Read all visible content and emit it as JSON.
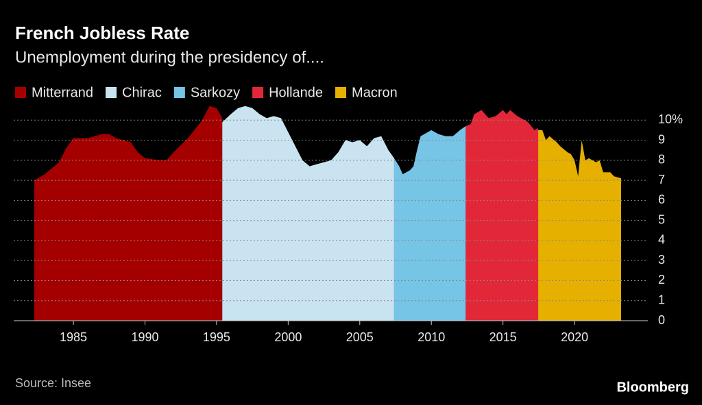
{
  "chart_data": {
    "type": "area",
    "title": "French Jobless Rate",
    "subtitle": "Unemployment during the presidency of....",
    "source": "Source: Insee",
    "brand": "Bloomberg",
    "xlim": [
      1981.8,
      2024.4
    ],
    "xticks": [
      1985,
      1990,
      1995,
      2000,
      2005,
      2010,
      2015,
      2020
    ],
    "ylim": [
      0,
      11
    ],
    "yticks": [
      0,
      1,
      2,
      3,
      4,
      5,
      6,
      7,
      8,
      9,
      {
        "value": 10,
        "label": "10%"
      }
    ],
    "grid": true,
    "series": [
      {
        "name": "Mitterrand",
        "color": "#a50000",
        "x": [
          1982.27,
          1983,
          1984,
          1984.5,
          1985,
          1986,
          1987,
          1987.5,
          1988,
          1989,
          1989.5,
          1990,
          1991,
          1991.5,
          1992,
          1993,
          1994,
          1994.5,
          1995,
          1995.4
        ],
        "values": [
          7.0,
          7.3,
          7.9,
          8.6,
          9.1,
          9.1,
          9.3,
          9.3,
          9.1,
          8.9,
          8.4,
          8.1,
          8.0,
          8.0,
          8.4,
          9.1,
          10.0,
          10.7,
          10.6,
          10.1
        ]
      },
      {
        "name": "Chirac",
        "color": "#c9e4f0",
        "x": [
          1995.4,
          1996,
          1996.5,
          1997,
          1997.5,
          1998,
          1998.5,
          1999,
          1999.5,
          2000,
          2000.5,
          2001,
          2001.5,
          2002,
          2002.5,
          2003,
          2003.5,
          2004,
          2004.5,
          2005,
          2005.5,
          2006,
          2006.5,
          2007,
          2007.4
        ],
        "values": [
          9.9,
          10.3,
          10.6,
          10.7,
          10.6,
          10.3,
          10.1,
          10.2,
          10.1,
          9.4,
          8.7,
          8.0,
          7.7,
          7.8,
          7.9,
          8.0,
          8.4,
          9.0,
          8.9,
          9.0,
          8.7,
          9.1,
          9.2,
          8.5,
          8.1
        ]
      },
      {
        "name": "Sarkozy",
        "color": "#76c4e6",
        "x": [
          2007.4,
          2007.75,
          2008,
          2008.5,
          2008.75,
          2009,
          2009.25,
          2009.75,
          2010,
          2010.5,
          2011,
          2011.5,
          2012,
          2012.4
        ],
        "values": [
          8.1,
          7.7,
          7.3,
          7.5,
          7.7,
          8.5,
          9.2,
          9.4,
          9.5,
          9.3,
          9.2,
          9.2,
          9.5,
          9.7
        ]
      },
      {
        "name": "Hollande",
        "color": "#e22838",
        "x": [
          2012.4,
          2012.75,
          2013,
          2013.5,
          2014,
          2014.5,
          2015,
          2015.25,
          2015.5,
          2016,
          2016.5,
          2016.75,
          2017.2,
          2017.46
        ],
        "values": [
          9.7,
          9.8,
          10.3,
          10.5,
          10.1,
          10.2,
          10.5,
          10.3,
          10.5,
          10.2,
          10.0,
          9.9,
          9.5,
          9.6
        ]
      },
      {
        "name": "Macron",
        "color": "#e6b000",
        "x": [
          2017.46,
          2017.75,
          2018,
          2018.25,
          2018.75,
          2019,
          2019.5,
          2019.75,
          2020,
          2020.25,
          2020.5,
          2020.75,
          2021,
          2021.25,
          2021.5,
          2021.75,
          2022,
          2022.5,
          2022.75,
          2023.25
        ],
        "values": [
          9.5,
          9.5,
          9.0,
          9.2,
          8.9,
          8.7,
          8.4,
          8.3,
          8.0,
          7.2,
          9.0,
          8.0,
          8.1,
          8.0,
          7.9,
          8.0,
          7.4,
          7.4,
          7.2,
          7.1
        ]
      }
    ]
  }
}
